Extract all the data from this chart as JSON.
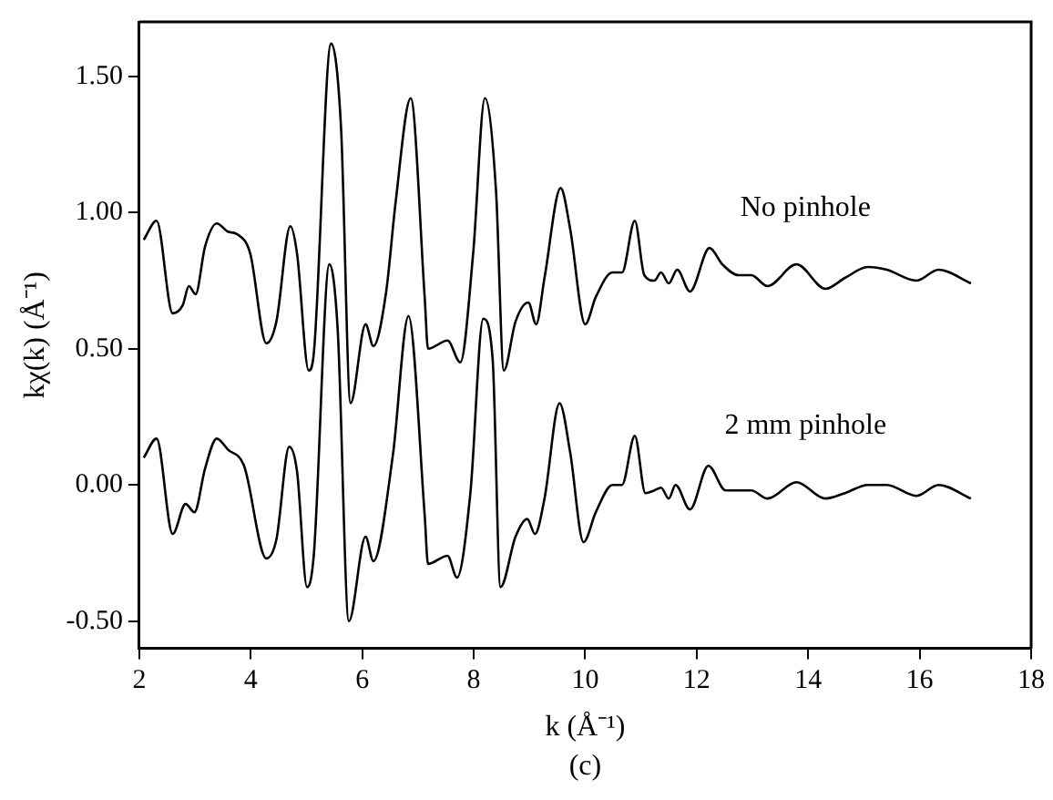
{
  "chart_data": {
    "type": "line",
    "xlabel": "k (Å⁻¹)",
    "ylabel": "kχ(k) (Å⁻¹)",
    "annotations": [
      "(c)"
    ],
    "xlim": [
      2,
      18
    ],
    "xticks": [
      2,
      4,
      6,
      8,
      10,
      12,
      14,
      16,
      18
    ],
    "ylim": [
      -0.6,
      1.7
    ],
    "yticks": [
      {
        "value": -0.5,
        "label": "-0.50"
      },
      {
        "value": 0,
        "label": "0.00"
      },
      {
        "value": 0.5,
        "label": "0.50"
      },
      {
        "value": 1,
        "label": "1.00"
      },
      {
        "value": 1.5,
        "label": "1.50"
      }
    ],
    "grid": false,
    "legend": false,
    "marker": "none",
    "line_style": "solid",
    "series": [
      {
        "name": "No pinhole",
        "color": "#000000",
        "x": [
          2.08,
          2.31,
          2.6,
          2.78,
          2.89,
          3.01,
          3.18,
          3.39,
          3.59,
          3.76,
          3.99,
          4.28,
          4.46,
          4.71,
          4.83,
          5.04,
          5.13,
          5.44,
          5.62,
          5.79,
          6.06,
          6.2,
          6.43,
          6.6,
          6.87,
          7.12,
          7.18,
          7.53,
          7.76,
          7.99,
          8.2,
          8.4,
          8.54,
          8.75,
          8.98,
          9.12,
          9.27,
          9.56,
          9.73,
          10.0,
          10.19,
          10.49,
          10.66,
          10.89,
          11.06,
          11.24,
          11.36,
          11.5,
          11.65,
          11.88,
          12.23,
          12.46,
          12.75,
          12.98,
          13.27,
          13.79,
          14.31,
          14.66,
          15.07,
          15.41,
          15.94,
          16.34,
          16.92
        ],
        "values": [
          0.9,
          0.97,
          0.63,
          0.66,
          0.73,
          0.7,
          0.875,
          0.96,
          0.93,
          0.92,
          0.85,
          0.52,
          0.6,
          0.95,
          0.85,
          0.42,
          0.48,
          1.62,
          1.31,
          0.3,
          0.59,
          0.51,
          0.71,
          1.04,
          1.42,
          0.69,
          0.5,
          0.53,
          0.45,
          0.85,
          1.42,
          1.08,
          0.42,
          0.6,
          0.67,
          0.59,
          0.76,
          1.09,
          0.94,
          0.59,
          0.69,
          0.78,
          0.78,
          0.97,
          0.77,
          0.75,
          0.78,
          0.74,
          0.79,
          0.71,
          0.87,
          0.81,
          0.77,
          0.77,
          0.73,
          0.81,
          0.72,
          0.76,
          0.8,
          0.79,
          0.75,
          0.79,
          0.74
        ]
      },
      {
        "name": "2 mm pinhole",
        "color": "#000000",
        "x": [
          2.08,
          2.31,
          2.6,
          2.83,
          2.99,
          3.18,
          3.39,
          3.59,
          3.88,
          4.28,
          4.46,
          4.69,
          4.83,
          5.01,
          5.13,
          5.41,
          5.56,
          5.76,
          6.06,
          6.2,
          6.55,
          6.83,
          7.12,
          7.18,
          7.53,
          7.7,
          7.94,
          8.17,
          8.34,
          8.48,
          8.75,
          8.96,
          9.1,
          9.27,
          9.54,
          9.73,
          9.97,
          10.19,
          10.49,
          10.66,
          10.89,
          11.08,
          11.24,
          11.36,
          11.5,
          11.62,
          11.88,
          12.21,
          12.52,
          12.75,
          12.98,
          13.27,
          13.79,
          14.31,
          14.66,
          15.07,
          15.41,
          15.94,
          16.34,
          16.92
        ],
        "values": [
          0.1,
          0.17,
          -0.18,
          -0.07,
          -0.1,
          0.06,
          0.17,
          0.13,
          0.07,
          -0.27,
          -0.2,
          0.14,
          0.05,
          -0.375,
          -0.26,
          0.81,
          0.57,
          -0.5,
          -0.19,
          -0.28,
          0.11,
          0.62,
          -0.11,
          -0.29,
          -0.26,
          -0.34,
          -0.03,
          0.61,
          0.46,
          -0.375,
          -0.19,
          -0.125,
          -0.18,
          -0.05,
          0.3,
          0.12,
          -0.21,
          -0.1,
          0,
          0,
          0.18,
          -0.03,
          -0.02,
          -0.01,
          -0.05,
          0,
          -0.09,
          0.07,
          -0.02,
          -0.02,
          -0.02,
          -0.05,
          0.01,
          -0.05,
          -0.03,
          0,
          0,
          -0.04,
          0,
          -0.05
        ]
      }
    ]
  }
}
